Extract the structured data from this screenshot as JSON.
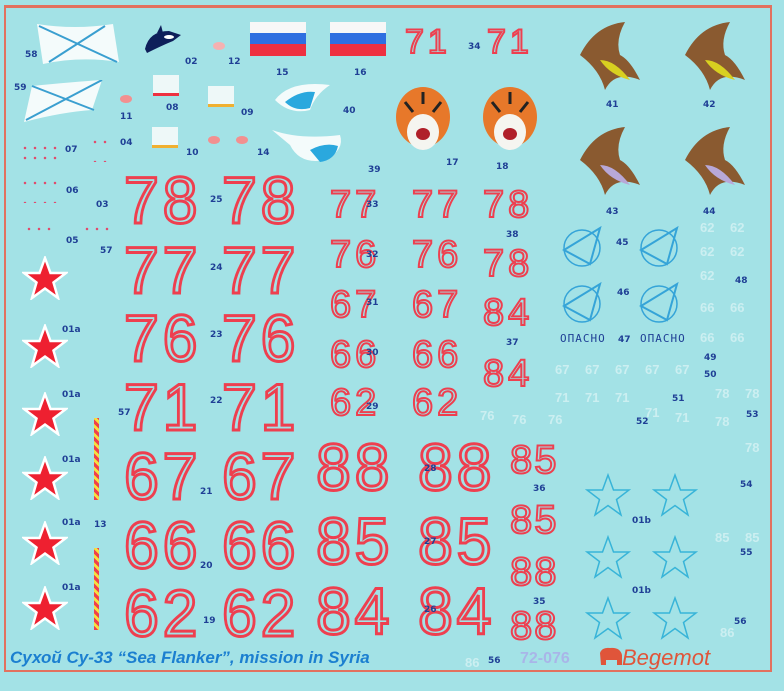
{
  "sheet": {
    "caption": "Сухой Су-33 “Sea Flanker”, mission in Syria",
    "catalog_number": "72-076",
    "brand": "Begemot",
    "warning_text": "ОПАСНО",
    "colors": {
      "background": "#a3e2e6",
      "border": "#e2715f",
      "numerals": "#ee3f4f",
      "labels": "#1f3f95",
      "caption": "#1b7fd0"
    }
  },
  "big_numerals": [
    "78",
    "78",
    "77",
    "77",
    "76",
    "76",
    "71",
    "71",
    "67",
    "67",
    "66",
    "66",
    "62",
    "62"
  ],
  "top_numerals": [
    "71",
    "71"
  ],
  "mid_numerals": [
    "77",
    "77",
    "76",
    "76",
    "67",
    "67",
    "66",
    "66",
    "62",
    "62"
  ],
  "right_numerals": [
    "78",
    "78",
    "84",
    "84"
  ],
  "lower_numerals": [
    "88",
    "88",
    "85",
    "85",
    "84",
    "84"
  ],
  "small_numerals": [
    "85",
    "85",
    "88",
    "88"
  ],
  "labels": [
    "58",
    "59",
    "02",
    "12",
    "15",
    "16",
    "34",
    "11",
    "08",
    "09",
    "40",
    "07",
    "04",
    "10",
    "14",
    "39",
    "17",
    "18",
    "41",
    "42",
    "43",
    "44",
    "06",
    "03",
    "05",
    "25",
    "33",
    "24",
    "32",
    "38",
    "45",
    "46",
    "48",
    "57",
    "57",
    "01a",
    "01a",
    "01a",
    "01a",
    "01a",
    "23",
    "31",
    "30",
    "22",
    "29",
    "37",
    "47",
    "49",
    "50",
    "51",
    "52",
    "53",
    "21",
    "28",
    "36",
    "54",
    "13",
    "01b",
    "01b",
    "20",
    "27",
    "55",
    "19",
    "26",
    "35",
    "56",
    "56"
  ],
  "ghost_numerals": [
    "62",
    "62",
    "62",
    "62",
    "62",
    "66",
    "66",
    "66",
    "66",
    "67",
    "67",
    "67",
    "67",
    "67",
    "71",
    "71",
    "71",
    "71",
    "71",
    "76",
    "76",
    "76",
    "78",
    "78",
    "78",
    "78",
    "85",
    "85",
    "86",
    "86"
  ]
}
